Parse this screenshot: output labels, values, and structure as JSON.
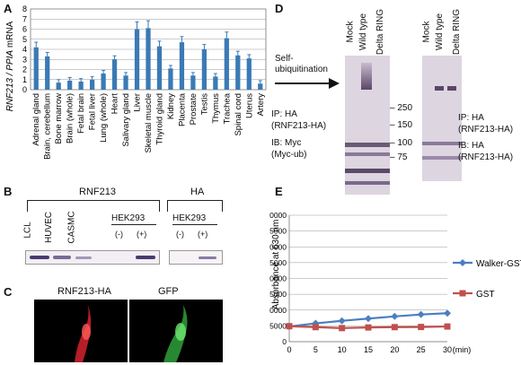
{
  "panels": {
    "a": "A",
    "b": "B",
    "c": "C",
    "d": "D",
    "e": "E"
  },
  "panel_a": {
    "ylabel_gene": "RNF213 / PPIA",
    "ylabel_unit": " mRNA",
    "ytick_labels": [
      "0",
      "1",
      "2",
      "3",
      "4",
      "5",
      "6",
      "7",
      "8"
    ]
  },
  "panel_b": {
    "header_rnf213": "RNF213",
    "header_ha": "HA",
    "lanes_left": [
      "LCL",
      "HUVEC",
      "CASMC"
    ],
    "hek_left": "HEK293",
    "hek_right": "HEK293",
    "minus": "(-)",
    "plus": "(+)"
  },
  "panel_c": {
    "left_label": "RNF213-HA",
    "right_label": "GFP"
  },
  "panel_d": {
    "lanes_left": [
      "Mock",
      "Wild type",
      "Delta RING"
    ],
    "lanes_right": [
      "Mock",
      "Wild type",
      "Delta RING"
    ],
    "self_ub_line1": "Self-",
    "self_ub_line2": "ubiquitination",
    "markers": [
      "250",
      "150",
      "100",
      "75"
    ],
    "left_text": [
      "IP: HA",
      "(RNF213-HA)",
      "IB: Myc",
      "(Myc-ub)"
    ],
    "right_text": [
      "IP: HA",
      "(RNF213-HA)",
      "IB: HA",
      "(RNF213-HA)"
    ]
  },
  "colors": {
    "walker": "#4a7fc1",
    "gst": "#c0504d",
    "bar": "#3a7ab5"
  },
  "chart_data": [
    {
      "type": "bar",
      "title": "",
      "xlabel": "",
      "ylabel": "RNF213 / PPIA mRNA",
      "ylim": [
        0,
        8
      ],
      "categories": [
        "Adrenal gland",
        "Brain, cerebellum",
        "Bone marrow",
        "Brain (whole)",
        "Fetal brain",
        "Fetal liver",
        "Lung (whole)",
        "Heart",
        "Salivary gland",
        "Liver",
        "Skeletal muscle",
        "Thyroid gland",
        "Kidney",
        "Placenta",
        "Prostate",
        "Testis",
        "Thymus",
        "Trachea",
        "Spinal cord",
        "Uterus",
        "Artery"
      ],
      "values": [
        4.2,
        3.3,
        0.7,
        0.9,
        0.8,
        1.0,
        1.6,
        3.0,
        1.4,
        6.0,
        6.1,
        4.3,
        2.1,
        4.7,
        1.4,
        4.0,
        1.3,
        5.1,
        3.4,
        3.1,
        0.6
      ],
      "grid": true
    },
    {
      "type": "line",
      "title": "",
      "xlabel": "(min)",
      "ylabel": "Absorbance at 630 nm",
      "x": [
        0,
        5,
        10,
        15,
        20,
        25,
        30
      ],
      "xlim": [
        0,
        30
      ],
      "ylim": [
        0,
        40000
      ],
      "ytick_labels": [
        "0",
        "5000",
        "10000",
        "15000",
        "20000",
        "25000",
        "30000",
        "35000",
        "40000"
      ],
      "series": [
        {
          "name": "Walker-GST",
          "values": [
            4800,
            5800,
            6600,
            7300,
            8000,
            8600,
            9000
          ]
        },
        {
          "name": "GST",
          "values": [
            4900,
            4600,
            4300,
            4500,
            4600,
            4650,
            4800
          ]
        }
      ],
      "legend_position": "right",
      "grid": true
    }
  ]
}
